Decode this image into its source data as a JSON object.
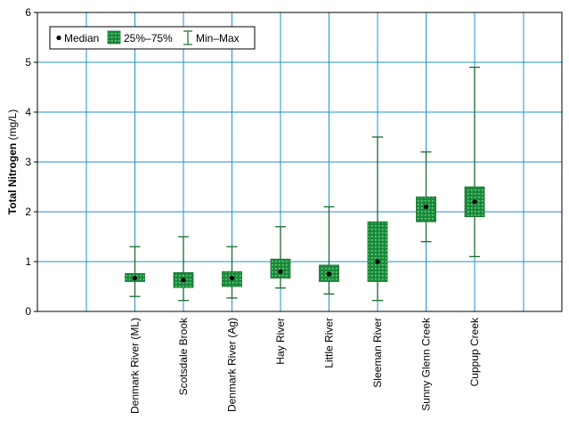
{
  "chart_data": {
    "type": "boxplot",
    "ylabel_bold": "Total Nitrogen",
    "ylabel_unit": " (mg/L)",
    "ylim": [
      0,
      6
    ],
    "yticks": [
      "0",
      "1",
      "2",
      "3",
      "4",
      "5",
      "6"
    ],
    "grid": true,
    "legend_position": "top-left",
    "legend": {
      "median": "Median",
      "iqr": "25%–75%",
      "range": "Min–Max"
    },
    "colors": {
      "box": "#1a8a3a",
      "box_dot": "#7cd98f",
      "whisker": "#1a6b2e",
      "grid": "#1e90d6",
      "median": "#000000"
    },
    "categories": [
      "Denmark River (ML)",
      "Scotsdale Brook",
      "Denmark River (Ag)",
      "Hay River",
      "Little River",
      "Sleeman River",
      "Sunny Glenn Creek",
      "Cuppup Creek"
    ],
    "series": [
      {
        "min": 0.3,
        "q1": 0.6,
        "median": 0.67,
        "q3": 0.76,
        "max": 1.3
      },
      {
        "min": 0.22,
        "q1": 0.48,
        "median": 0.63,
        "q3": 0.78,
        "max": 1.5
      },
      {
        "min": 0.27,
        "q1": 0.5,
        "median": 0.67,
        "q3": 0.8,
        "max": 1.3
      },
      {
        "min": 0.47,
        "q1": 0.67,
        "median": 0.8,
        "q3": 1.05,
        "max": 1.7
      },
      {
        "min": 0.35,
        "q1": 0.6,
        "median": 0.75,
        "q3": 0.93,
        "max": 2.1
      },
      {
        "min": 0.22,
        "q1": 0.6,
        "median": 1.0,
        "q3": 1.8,
        "max": 3.5
      },
      {
        "min": 1.4,
        "q1": 1.8,
        "median": 2.1,
        "q3": 2.3,
        "max": 3.2
      },
      {
        "min": 1.1,
        "q1": 1.9,
        "median": 2.2,
        "q3": 2.5,
        "max": 4.9
      }
    ]
  }
}
